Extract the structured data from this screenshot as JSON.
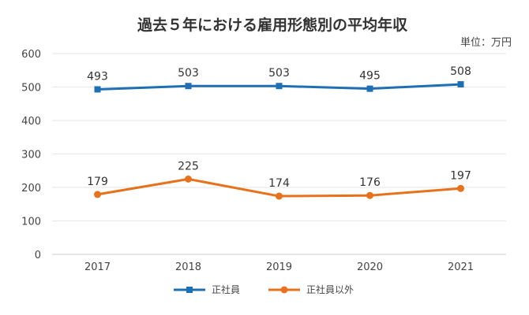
{
  "chart_data": {
    "type": "line",
    "title": "過去５年における雇用形態別の平均年収",
    "unit_label": "単位：万円",
    "categories": [
      "2017",
      "2018",
      "2019",
      "2020",
      "2021"
    ],
    "ylim": [
      0,
      600
    ],
    "yticks": [
      0,
      100,
      200,
      300,
      400,
      500,
      600
    ],
    "grid": true,
    "legend_position": "bottom-center",
    "series": [
      {
        "name": "正社員",
        "values": [
          493,
          503,
          503,
          495,
          508
        ],
        "color": "#1f6fb5",
        "marker": "square"
      },
      {
        "name": "正社員以外",
        "values": [
          179,
          225,
          174,
          176,
          197
        ],
        "color": "#e8711c",
        "marker": "circle"
      }
    ]
  }
}
